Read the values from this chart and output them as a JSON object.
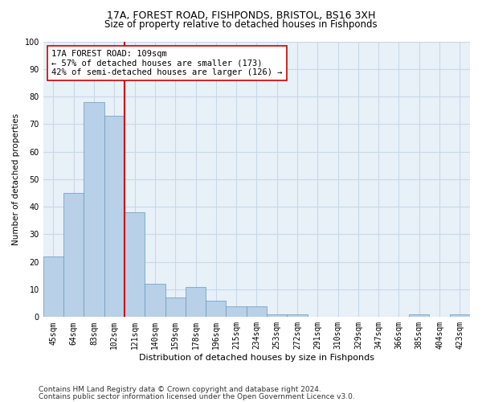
{
  "title1": "17A, FOREST ROAD, FISHPONDS, BRISTOL, BS16 3XH",
  "title2": "Size of property relative to detached houses in Fishponds",
  "xlabel": "Distribution of detached houses by size in Fishponds",
  "ylabel": "Number of detached properties",
  "categories": [
    "45sqm",
    "64sqm",
    "83sqm",
    "102sqm",
    "121sqm",
    "140sqm",
    "159sqm",
    "178sqm",
    "196sqm",
    "215sqm",
    "234sqm",
    "253sqm",
    "272sqm",
    "291sqm",
    "310sqm",
    "329sqm",
    "347sqm",
    "366sqm",
    "385sqm",
    "404sqm",
    "423sqm"
  ],
  "values": [
    22,
    45,
    78,
    73,
    38,
    12,
    7,
    11,
    6,
    4,
    4,
    1,
    1,
    0,
    0,
    0,
    0,
    0,
    1,
    0,
    1
  ],
  "bar_color": "#b8d0e8",
  "bar_edge_color": "#6699bb",
  "bar_edge_width": 0.5,
  "vline_color": "#cc0000",
  "vline_linewidth": 1.5,
  "annotation_text": "17A FOREST ROAD: 109sqm\n← 57% of detached houses are smaller (173)\n42% of semi-detached houses are larger (126) →",
  "annotation_box_color": "#ffffff",
  "annotation_box_edgecolor": "#cc0000",
  "annotation_fontsize": 7.5,
  "ylim": [
    0,
    100
  ],
  "yticks": [
    0,
    10,
    20,
    30,
    40,
    50,
    60,
    70,
    80,
    90,
    100
  ],
  "grid_color": "#c8d8e8",
  "background_color": "#e8f0f8",
  "footer1": "Contains HM Land Registry data © Crown copyright and database right 2024.",
  "footer2": "Contains public sector information licensed under the Open Government Licence v3.0.",
  "title1_fontsize": 9,
  "title2_fontsize": 8.5,
  "xlabel_fontsize": 8,
  "ylabel_fontsize": 7.5,
  "tick_fontsize": 7,
  "footer_fontsize": 6.5
}
